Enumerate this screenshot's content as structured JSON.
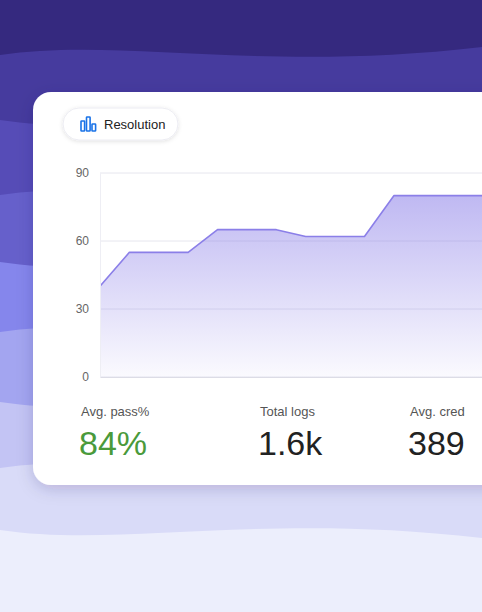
{
  "chart_data": {
    "type": "area",
    "title": "Resolution",
    "x": [
      0,
      1,
      3,
      4,
      6,
      7,
      9,
      10,
      13
    ],
    "values": [
      40,
      55,
      55,
      65,
      65,
      62,
      62,
      80,
      80
    ],
    "xlim": [
      0,
      13
    ],
    "ylim": [
      0,
      90
    ],
    "yticks": [
      0,
      30,
      60,
      90
    ],
    "grid": true,
    "tick_labels": "y",
    "color": "#8b7fe8"
  },
  "stats": [
    {
      "label": "Avg. pass%",
      "value": "84%"
    },
    {
      "label": "Total logs",
      "value": "1.6k"
    },
    {
      "label": "Avg. cred",
      "value": "389"
    }
  ]
}
